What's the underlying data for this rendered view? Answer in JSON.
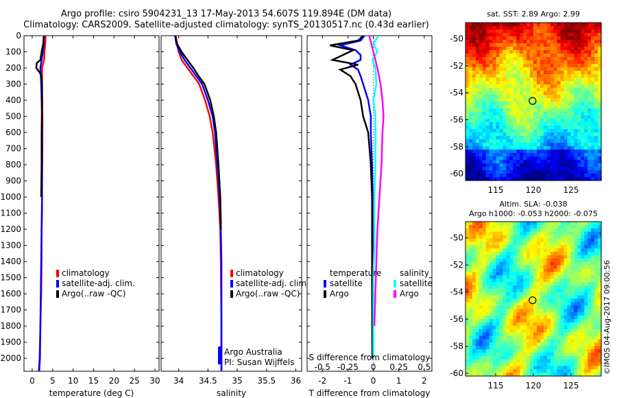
{
  "header": {
    "line1": "Argo profile: csiro 5904231_13 17-May-2013 54.607S 119.894E (DM data)",
    "line2": "Climatology: CARS2009. Satellite-adjusted climatology: synTS_20130517.nc (0.43d earlier)"
  },
  "colors": {
    "climatology": "#ff0000",
    "satellite": "#0000ff",
    "argo": "#000000",
    "sat_salinity": "#00ffff",
    "argo_salinity": "#ff00ff"
  },
  "chart_data": [
    {
      "id": "temperature",
      "type": "line",
      "xlabel": "temperature (deg C)",
      "ylabel": "",
      "xlim": [
        -2,
        31
      ],
      "ylim": [
        2080,
        0
      ],
      "xticks": [
        0,
        5,
        10,
        15,
        20,
        25,
        30
      ],
      "xtick_labels": [
        "0",
        "5",
        "10",
        "15",
        "20",
        "25",
        "30"
      ],
      "yticks": [
        0,
        100,
        200,
        300,
        400,
        500,
        600,
        700,
        800,
        900,
        1000,
        1100,
        1200,
        1300,
        1400,
        1500,
        1600,
        1700,
        1800,
        1900,
        2000
      ],
      "ytick_labels": [
        "0",
        "100",
        "200",
        "300",
        "400",
        "500",
        "600",
        "700",
        "800",
        "900",
        "1000",
        "1100",
        "1200",
        "1300",
        "1400",
        "1500",
        "1600",
        "1700",
        "1800",
        "1900",
        "2000"
      ],
      "legend": [
        "climatology",
        "satellite-adj. clim.",
        "Argo(..raw -QC)"
      ],
      "series": [
        {
          "name": "climatology",
          "color": "#ff0000",
          "x": [
            3.3,
            3.2,
            3.0,
            2.9,
            2.4,
            2.4,
            2.5,
            2.5,
            2.4,
            2.4,
            2.4,
            2.3,
            2.3,
            2.2,
            2.0,
            1.8,
            1.6
          ],
          "y": [
            0,
            50,
            100,
            150,
            200,
            300,
            500,
            700,
            900,
            1000,
            1100,
            1200,
            1400,
            1600,
            1800,
            2000,
            2080
          ]
        },
        {
          "name": "satellite-adj. clim.",
          "color": "#0000ff",
          "x": [
            2.9,
            2.8,
            2.6,
            2.3,
            2.0,
            2.2,
            2.4,
            2.4,
            2.4,
            2.4,
            2.3,
            2.2,
            2.1,
            2.0,
            1.9,
            1.7
          ],
          "y": [
            0,
            50,
            100,
            150,
            200,
            300,
            500,
            700,
            900,
            1000,
            1200,
            1400,
            1600,
            1800,
            2000,
            2080
          ]
        },
        {
          "name": "Argo(..raw -QC)",
          "color": "#000000",
          "x": [
            2.8,
            2.7,
            2.3,
            2.0,
            1.1,
            1.0,
            1.6,
            2.1,
            2.3,
            2.4,
            2.4,
            2.3,
            2.3,
            2.2
          ],
          "y": [
            5,
            50,
            100,
            150,
            170,
            200,
            220,
            240,
            260,
            300,
            400,
            600,
            800,
            1000
          ]
        }
      ]
    },
    {
      "id": "salinity",
      "type": "line",
      "xlabel": "salinity",
      "ylabel": "",
      "xlim": [
        33.7,
        36.1
      ],
      "ylim": [
        2080,
        0
      ],
      "xticks": [
        34,
        34.5,
        35,
        35.5,
        36
      ],
      "xtick_labels": [
        "34",
        "34.5",
        "35",
        "35.5",
        "36"
      ],
      "legend": [
        "climatology",
        "satellite-adj. clim.",
        "Argo(..raw -QC)"
      ],
      "annotation": [
        "Argo Australia",
        "PI: Susan Wijffels"
      ],
      "series": [
        {
          "name": "climatology",
          "color": "#ff0000",
          "x": [
            33.95,
            33.97,
            34.0,
            34.05,
            34.15,
            34.25,
            34.35,
            34.45,
            34.53,
            34.58,
            34.64,
            34.68,
            34.71,
            34.72,
            34.73,
            34.73
          ],
          "y": [
            0,
            50,
            100,
            150,
            200,
            250,
            300,
            400,
            500,
            600,
            800,
            1000,
            1200,
            1400,
            1800,
            2080
          ]
        },
        {
          "name": "satellite-adj. clim.",
          "color": "#0000ff",
          "x": [
            33.94,
            33.96,
            34.02,
            34.1,
            34.2,
            34.3,
            34.4,
            34.5,
            34.58,
            34.62,
            34.66,
            34.7,
            34.72,
            34.73,
            34.73
          ],
          "y": [
            0,
            50,
            100,
            150,
            200,
            250,
            300,
            400,
            500,
            600,
            800,
            1000,
            1200,
            1400,
            2080
          ]
        },
        {
          "name": "Argo(..raw -QC)",
          "color": "#000000",
          "x": [
            33.94,
            33.97,
            34.05,
            34.15,
            34.25,
            34.34,
            34.44,
            34.54,
            34.6,
            34.64,
            34.68,
            34.71,
            34.72,
            34.72
          ],
          "y": [
            0,
            50,
            100,
            150,
            200,
            250,
            300,
            400,
            500,
            600,
            800,
            1000,
            1150,
            1200
          ]
        }
      ]
    },
    {
      "id": "difference",
      "type": "line",
      "xlabel": "T difference from climatology",
      "x2label": "S difference from climatology",
      "ylabel": "",
      "xlim": [
        -2.6,
        2.3
      ],
      "ylim": [
        2080,
        0
      ],
      "xticks": [
        -2,
        -1,
        0,
        1,
        2
      ],
      "xtick_labels": [
        "-2",
        "-1",
        "0",
        "1",
        "2"
      ],
      "x2ticks": [
        -0.5,
        -0.25,
        0,
        0.25,
        0.5
      ],
      "x2tick_labels": [
        "-0.5",
        "-0.25",
        "0",
        "0.25",
        "0.5"
      ],
      "x2lim": [
        -0.65,
        0.575
      ],
      "legend_temperature": {
        "title": "temperature",
        "items": [
          "satellite",
          "Argo"
        ]
      },
      "legend_salinity": {
        "title": "salinity",
        "items": [
          "satellite",
          "Argo"
        ]
      },
      "series": [
        {
          "name": "T satellite",
          "color": "#0000ff",
          "x": [
            -0.35,
            -0.5,
            -1.3,
            -0.7,
            -0.5,
            -0.5,
            -0.9,
            -0.6,
            -0.5,
            -0.4,
            -0.2,
            -0.1,
            -0.1,
            -0.05,
            -0.03,
            -0.02,
            -0.02
          ],
          "y": [
            0,
            30,
            60,
            90,
            120,
            150,
            180,
            210,
            250,
            300,
            400,
            500,
            600,
            800,
            1000,
            1500,
            2000
          ]
        },
        {
          "name": "T Argo",
          "color": "#000000",
          "x": [
            -0.4,
            -0.6,
            -1.7,
            -0.8,
            -1.2,
            -1.6,
            -0.6,
            -1.3,
            -0.9,
            -0.7,
            -0.5,
            -0.4,
            -0.2,
            -0.1,
            -0.05,
            -0.05,
            -0.04
          ],
          "y": [
            0,
            30,
            60,
            90,
            120,
            150,
            180,
            210,
            250,
            300,
            400,
            500,
            600,
            800,
            1000,
            1500,
            2000
          ]
        },
        {
          "name": "S satellite",
          "color": "#00ffff",
          "x": [
            0.05,
            0.0,
            0.04,
            -0.01,
            0.02,
            0.03,
            0.0,
            0.02,
            0.02,
            0.02,
            0.01,
            0.01,
            0.0,
            0.0,
            0.0
          ],
          "y": [
            0,
            50,
            100,
            150,
            200,
            300,
            400,
            500,
            600,
            800,
            1000,
            1300,
            1500,
            1800,
            2000
          ]
        },
        {
          "name": "S Argo",
          "color": "#ff00ff",
          "x": [
            -0.04,
            -0.02,
            0.0,
            0.02,
            0.04,
            0.07,
            0.09,
            0.1,
            0.09,
            0.08,
            0.06,
            0.04,
            0.03,
            0.02,
            0.01
          ],
          "y": [
            0,
            50,
            100,
            150,
            200,
            300,
            400,
            500,
            600,
            800,
            1000,
            1200,
            1400,
            1600,
            1800
          ]
        }
      ]
    },
    {
      "id": "sst_map",
      "type": "heatmap",
      "title": "sat. SST: 2.89 Argo: 2.99",
      "xlim": [
        111,
        129
      ],
      "ylim": [
        -60.5,
        -48.8
      ],
      "xticks": [
        115,
        120,
        125
      ],
      "xtick_labels": [
        "115",
        "120",
        "125"
      ],
      "yticks": [
        -50,
        -52,
        -54,
        -56,
        -58,
        -60
      ],
      "ytick_labels": [
        "-50",
        "-52",
        "-54",
        "-56",
        "-58",
        "-60"
      ],
      "marker": {
        "lon": 119.894,
        "lat": -54.607
      }
    },
    {
      "id": "sla_map",
      "type": "heatmap",
      "title": "Altim. SLA: -0.038",
      "subtitle": "Argo h1000: -0.053 h2000: -0.075",
      "xlim": [
        111,
        129
      ],
      "ylim": [
        -60.2,
        -48.8
      ],
      "xticks": [
        115,
        120,
        125
      ],
      "xtick_labels": [
        "115",
        "120",
        "125"
      ],
      "yticks": [
        -50,
        -52,
        -54,
        -56,
        -58,
        -60
      ],
      "ytick_labels": [
        "-50",
        "-52",
        "-54",
        "-56",
        "-58",
        "-60"
      ],
      "marker": {
        "lon": 119.894,
        "lat": -54.607
      }
    }
  ],
  "watermark": "©IMOS 04-Aug-2017 09:00:56"
}
